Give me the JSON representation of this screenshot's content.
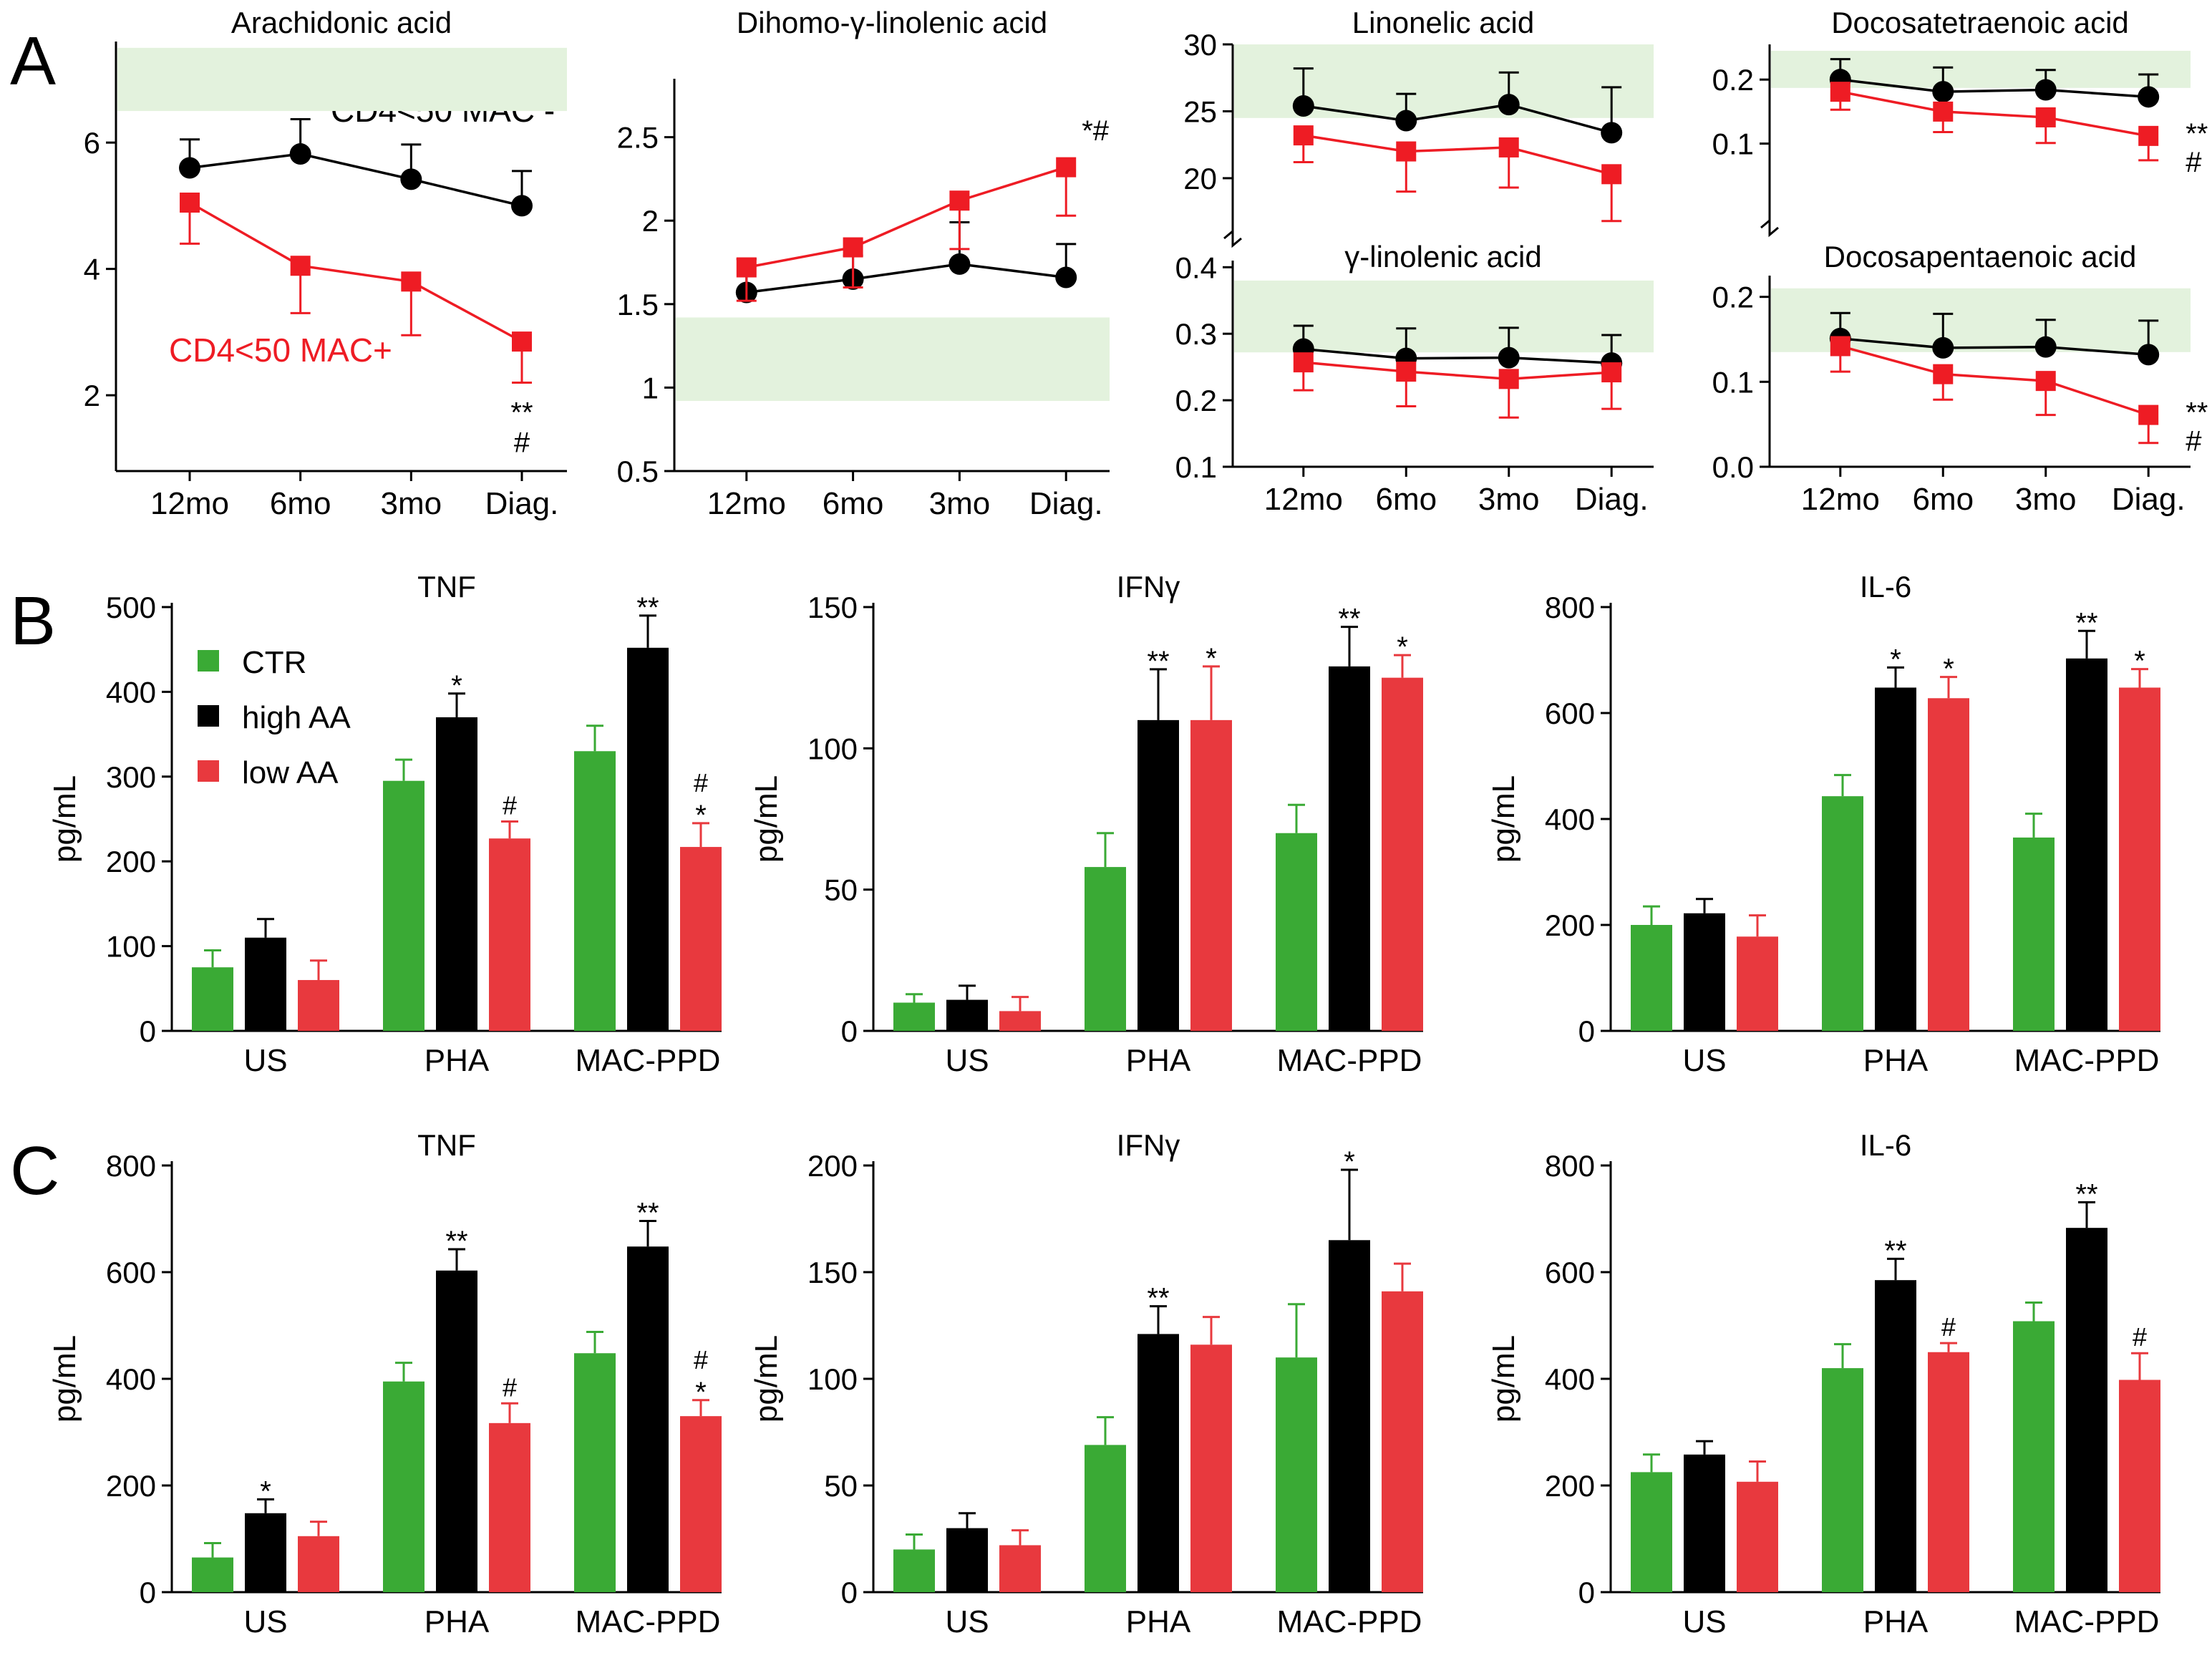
{
  "colors": {
    "black": "#000000",
    "red": "#ee1c24",
    "green": "#3aaa35",
    "bar_red": "#e8393e",
    "band": "#e3f2dd"
  },
  "panel_letters": {
    "A": "A",
    "B": "B",
    "C": "C"
  },
  "legend": {
    "ctr": "CTR",
    "high": "high AA",
    "low": "low AA"
  },
  "series_labels": {
    "mac_neg": "CD4<50 MAC -",
    "mac_pos": "CD4<50 MAC+"
  },
  "chart_data": [
    {
      "id": "aa",
      "panel": "A",
      "type": "line",
      "title": "Arachidonic acid",
      "x": [
        "12mo",
        "6mo",
        "3mo",
        "Diag."
      ],
      "yticks": [
        2,
        4,
        6
      ],
      "ylim": [
        0.8,
        7.6
      ],
      "normal_range": [
        6.5,
        7.5
      ],
      "series": [
        {
          "name": "CD4<50 MAC -",
          "values": [
            5.6,
            5.82,
            5.42,
            5.0
          ],
          "errors": [
            0.45,
            0.55,
            0.55,
            0.55
          ]
        },
        {
          "name": "CD4<50 MAC+",
          "values": [
            5.05,
            4.05,
            3.8,
            2.85
          ],
          "errors": [
            0.65,
            0.75,
            0.85,
            0.65
          ]
        }
      ],
      "annotations": [
        {
          "series": 1,
          "index": 3,
          "text": "**",
          "position": "below"
        },
        {
          "series": 1,
          "index": 3,
          "text": "#",
          "position": "below"
        }
      ]
    },
    {
      "id": "dgla",
      "panel": "A",
      "type": "line",
      "title": "Dihomo-γ-linolenic acid",
      "x": [
        "12mo",
        "6mo",
        "3mo",
        "Diag."
      ],
      "yticks": [
        0.5,
        1.0,
        1.5,
        2.0,
        2.5
      ],
      "ylim": [
        0.5,
        2.85
      ],
      "normal_range": [
        0.92,
        1.42
      ],
      "series": [
        {
          "name": "CD4<50 MAC -",
          "values": [
            1.57,
            1.65,
            1.74,
            1.66
          ],
          "errors": [
            0.2,
            0.14,
            0.25,
            0.2
          ]
        },
        {
          "name": "CD4<50 MAC+",
          "values": [
            1.72,
            1.84,
            2.12,
            2.32
          ],
          "errors": [
            0.2,
            0.24,
            0.29,
            0.29
          ]
        }
      ],
      "annotations": [
        {
          "series": 1,
          "index": 3,
          "text": "*#",
          "position": "top-right"
        }
      ]
    },
    {
      "id": "la",
      "panel": "A",
      "type": "line",
      "title": "Linonelic acid",
      "x": [
        "12mo",
        "6mo",
        "3mo",
        "Diag."
      ],
      "yticks": [
        20,
        25,
        30
      ],
      "ylim": [
        17.0,
        30.0
      ],
      "normal_range": [
        24.5,
        30.0
      ],
      "series": [
        {
          "name": "CD4<50 MAC -",
          "values": [
            25.4,
            24.3,
            25.5,
            23.4
          ],
          "errors": [
            2.8,
            2.0,
            2.4,
            3.4
          ]
        },
        {
          "name": "CD4<50 MAC+",
          "values": [
            23.2,
            22.0,
            22.3,
            20.3
          ],
          "errors": [
            2.0,
            3.0,
            3.0,
            3.5
          ]
        }
      ],
      "annotations": []
    },
    {
      "id": "dta",
      "panel": "A",
      "type": "line",
      "title": "Docosatetraenoic acid",
      "x": [
        "12mo",
        "6mo",
        "3mo",
        "Diag."
      ],
      "yticks": [
        0.1,
        0.2
      ],
      "ylim": [
        0.0,
        0.255
      ],
      "normal_range": [
        0.187,
        0.245
      ],
      "series": [
        {
          "name": "CD4<50 MAC -",
          "values": [
            0.2,
            0.181,
            0.184,
            0.173
          ],
          "errors": [
            0.032,
            0.038,
            0.031,
            0.035
          ]
        },
        {
          "name": "CD4<50 MAC+",
          "values": [
            0.181,
            0.15,
            0.141,
            0.112
          ],
          "errors": [
            0.028,
            0.032,
            0.04,
            0.038
          ]
        }
      ],
      "annotations": [
        {
          "series": 1,
          "index": 3,
          "text": "**",
          "position": "right"
        },
        {
          "series": 1,
          "index": 3,
          "text": "#",
          "position": "right"
        }
      ]
    },
    {
      "id": "gla",
      "panel": "A",
      "type": "line",
      "title": "γ-linolenic acid",
      "x": [
        "12mo",
        "6mo",
        "3mo",
        "Diag."
      ],
      "yticks": [
        0.1,
        0.2,
        0.3,
        0.4
      ],
      "ylim": [
        0.1,
        0.41
      ],
      "normal_range": [
        0.272,
        0.38
      ],
      "series": [
        {
          "name": "CD4<50 MAC -",
          "values": [
            0.277,
            0.263,
            0.264,
            0.256
          ],
          "errors": [
            0.035,
            0.045,
            0.045,
            0.042
          ]
        },
        {
          "name": "CD4<50 MAC+",
          "values": [
            0.257,
            0.243,
            0.232,
            0.242
          ],
          "errors": [
            0.042,
            0.052,
            0.058,
            0.055
          ]
        }
      ],
      "annotations": []
    },
    {
      "id": "dpa",
      "panel": "A",
      "type": "line",
      "title": "Docosapentaenoic acid",
      "x": [
        "12mo",
        "6mo",
        "3mo",
        "Diag."
      ],
      "yticks": [
        0.0,
        0.1,
        0.2
      ],
      "ylim": [
        0.0,
        0.225
      ],
      "normal_range": [
        0.135,
        0.21
      ],
      "series": [
        {
          "name": "CD4<50 MAC -",
          "values": [
            0.151,
            0.14,
            0.141,
            0.132
          ],
          "errors": [
            0.03,
            0.04,
            0.032,
            0.04
          ]
        },
        {
          "name": "CD4<50 MAC+",
          "values": [
            0.142,
            0.109,
            0.101,
            0.061
          ],
          "errors": [
            0.03,
            0.03,
            0.04,
            0.033
          ]
        }
      ],
      "annotations": [
        {
          "series": 1,
          "index": 3,
          "text": "**",
          "position": "right"
        },
        {
          "series": 1,
          "index": 3,
          "text": "#",
          "position": "right"
        }
      ]
    },
    {
      "id": "b_tnf",
      "panel": "B",
      "type": "bar",
      "title": "TNF",
      "ylabel": "pg/mL",
      "categories": [
        "US",
        "PHA",
        "MAC-PPD"
      ],
      "ylim": [
        0,
        500
      ],
      "yticks": [
        0,
        100,
        200,
        300,
        400,
        500
      ],
      "series": [
        {
          "name": "CTR",
          "values": [
            75,
            295,
            330
          ],
          "errors": [
            20,
            25,
            30
          ]
        },
        {
          "name": "high AA",
          "values": [
            110,
            370,
            452
          ],
          "errors": [
            22,
            28,
            38
          ]
        },
        {
          "name": "low AA",
          "values": [
            60,
            227,
            217
          ],
          "errors": [
            23,
            20,
            28
          ]
        }
      ],
      "annotations": [
        {
          "series": 1,
          "category": 1,
          "text": "*"
        },
        {
          "series": 1,
          "category": 2,
          "text": "**"
        },
        {
          "series": 2,
          "category": 1,
          "text": "#"
        },
        {
          "series": 2,
          "category": 2,
          "text": "#"
        },
        {
          "series": 2,
          "category": 2,
          "text": "*"
        }
      ]
    },
    {
      "id": "b_ifng",
      "panel": "B",
      "type": "bar",
      "title": "IFNγ",
      "ylabel": "pg/mL",
      "categories": [
        "US",
        "PHA",
        "MAC-PPD"
      ],
      "ylim": [
        0,
        150
      ],
      "yticks": [
        0,
        50,
        100,
        150
      ],
      "series": [
        {
          "name": "CTR",
          "values": [
            10,
            58,
            70
          ],
          "errors": [
            3,
            12,
            10
          ]
        },
        {
          "name": "high AA",
          "values": [
            11,
            110,
            129
          ],
          "errors": [
            5,
            18,
            14
          ]
        },
        {
          "name": "low AA",
          "values": [
            7,
            110,
            125
          ],
          "errors": [
            5,
            19,
            8
          ]
        }
      ],
      "annotations": [
        {
          "series": 1,
          "category": 1,
          "text": "**"
        },
        {
          "series": 1,
          "category": 2,
          "text": "**"
        },
        {
          "series": 2,
          "category": 1,
          "text": "*"
        },
        {
          "series": 2,
          "category": 2,
          "text": "*"
        }
      ]
    },
    {
      "id": "b_il6",
      "panel": "B",
      "type": "bar",
      "title": "IL-6",
      "ylabel": "pg/mL",
      "categories": [
        "US",
        "PHA",
        "MAC-PPD"
      ],
      "ylim": [
        0,
        800
      ],
      "yticks": [
        0,
        200,
        400,
        600,
        800
      ],
      "series": [
        {
          "name": "CTR",
          "values": [
            200,
            443,
            365
          ],
          "errors": [
            35,
            40,
            45
          ]
        },
        {
          "name": "high AA",
          "values": [
            222,
            648,
            703
          ],
          "errors": [
            27,
            38,
            52
          ]
        },
        {
          "name": "low AA",
          "values": [
            178,
            628,
            648
          ],
          "errors": [
            40,
            40,
            35
          ]
        }
      ],
      "annotations": [
        {
          "series": 1,
          "category": 1,
          "text": "*"
        },
        {
          "series": 1,
          "category": 2,
          "text": "**"
        },
        {
          "series": 2,
          "category": 1,
          "text": "*"
        },
        {
          "series": 2,
          "category": 2,
          "text": "*"
        }
      ]
    },
    {
      "id": "c_tnf",
      "panel": "C",
      "type": "bar",
      "title": "TNF",
      "ylabel": "pg/mL",
      "categories": [
        "US",
        "PHA",
        "MAC-PPD"
      ],
      "ylim": [
        0,
        800
      ],
      "yticks": [
        0,
        200,
        400,
        600,
        800
      ],
      "series": [
        {
          "name": "CTR",
          "values": [
            65,
            395,
            448
          ],
          "errors": [
            27,
            35,
            40
          ]
        },
        {
          "name": "high AA",
          "values": [
            148,
            603,
            648
          ],
          "errors": [
            26,
            40,
            48
          ]
        },
        {
          "name": "low AA",
          "values": [
            105,
            317,
            330
          ],
          "errors": [
            27,
            37,
            30
          ]
        }
      ],
      "annotations": [
        {
          "series": 1,
          "category": 0,
          "text": "*"
        },
        {
          "series": 1,
          "category": 1,
          "text": "**"
        },
        {
          "series": 1,
          "category": 2,
          "text": "**"
        },
        {
          "series": 2,
          "category": 1,
          "text": "#"
        },
        {
          "series": 2,
          "category": 2,
          "text": "#"
        },
        {
          "series": 2,
          "category": 2,
          "text": "*"
        }
      ]
    },
    {
      "id": "c_ifng",
      "panel": "C",
      "type": "bar",
      "title": "IFNγ",
      "ylabel": "pg/mL",
      "categories": [
        "US",
        "PHA",
        "MAC-PPD"
      ],
      "ylim": [
        0,
        200
      ],
      "yticks": [
        0,
        50,
        100,
        150,
        200
      ],
      "series": [
        {
          "name": "CTR",
          "values": [
            20,
            69,
            110
          ],
          "errors": [
            7,
            13,
            25
          ]
        },
        {
          "name": "high AA",
          "values": [
            30,
            121,
            165
          ],
          "errors": [
            7,
            13,
            33
          ]
        },
        {
          "name": "low AA",
          "values": [
            22,
            116,
            141
          ],
          "errors": [
            7,
            13,
            13
          ]
        }
      ],
      "annotations": [
        {
          "series": 1,
          "category": 1,
          "text": "**"
        },
        {
          "series": 1,
          "category": 2,
          "text": "*"
        }
      ]
    },
    {
      "id": "c_il6",
      "panel": "C",
      "type": "bar",
      "title": "IL-6",
      "ylabel": "pg/mL",
      "categories": [
        "US",
        "PHA",
        "MAC-PPD"
      ],
      "ylim": [
        0,
        800
      ],
      "yticks": [
        0,
        200,
        400,
        600,
        800
      ],
      "series": [
        {
          "name": "CTR",
          "values": [
            225,
            420,
            508
          ],
          "errors": [
            33,
            45,
            35
          ]
        },
        {
          "name": "high AA",
          "values": [
            258,
            585,
            683
          ],
          "errors": [
            25,
            40,
            48
          ]
        },
        {
          "name": "low AA",
          "values": [
            207,
            450,
            398
          ],
          "errors": [
            38,
            17,
            50
          ]
        }
      ],
      "annotations": [
        {
          "series": 1,
          "category": 1,
          "text": "**"
        },
        {
          "series": 1,
          "category": 2,
          "text": "**"
        },
        {
          "series": 2,
          "category": 1,
          "text": "#"
        },
        {
          "series": 2,
          "category": 2,
          "text": "#"
        }
      ]
    }
  ]
}
